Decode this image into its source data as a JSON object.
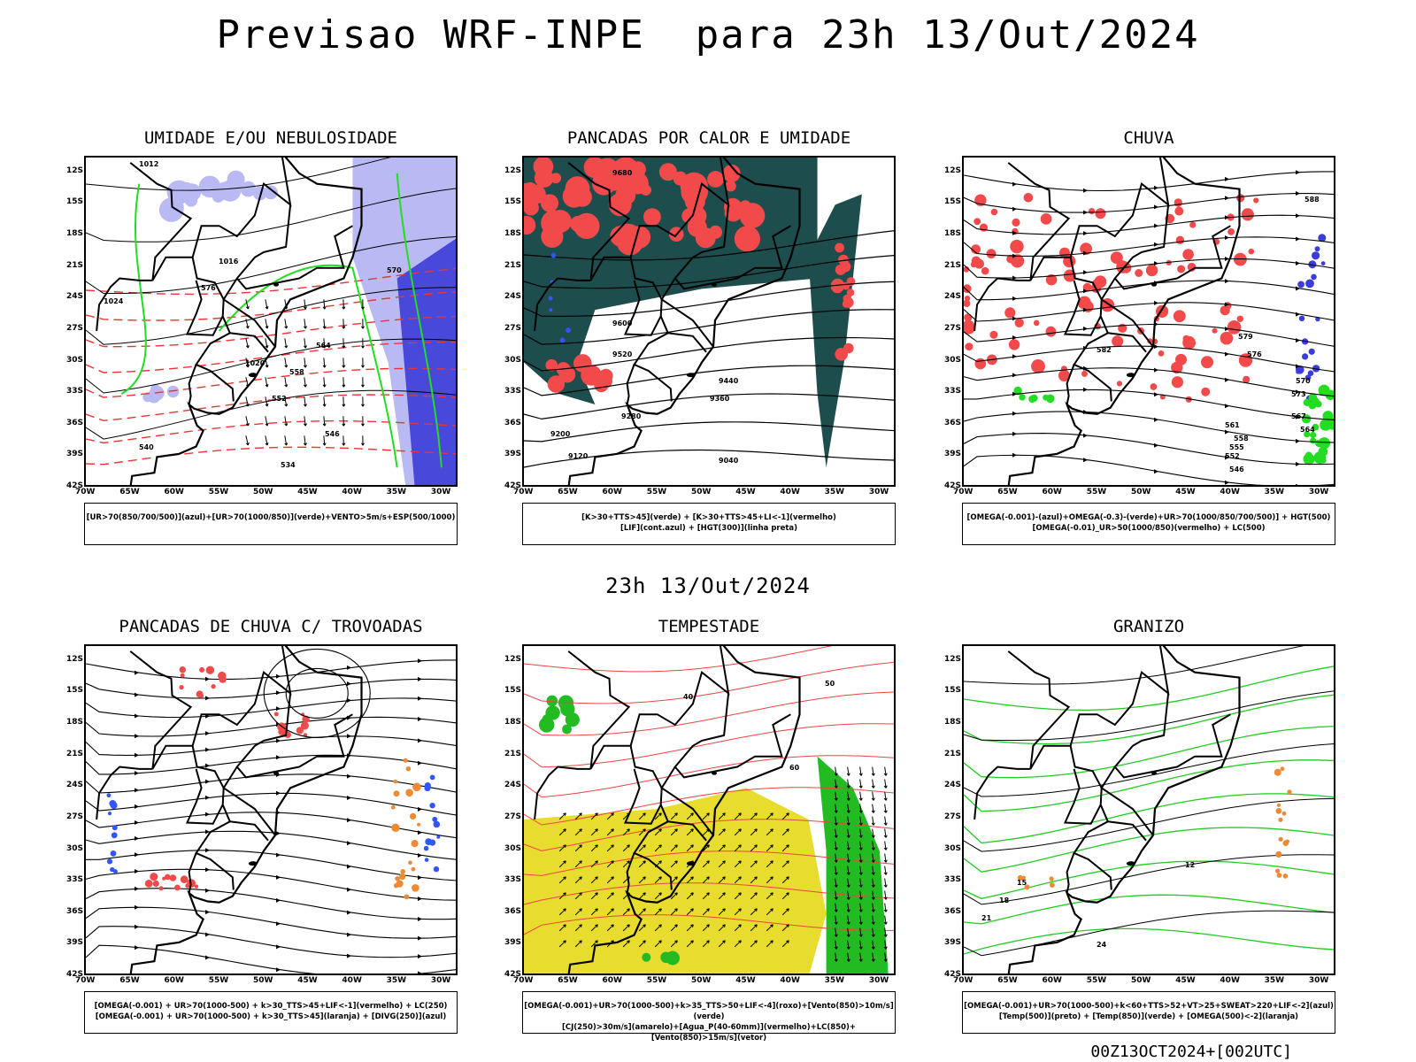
{
  "title": "Previsao WRF-INPE  para 23h 13/Out/2024",
  "subtitle": "23h 13/Out/2024",
  "footer": "00Z13OCT2024+[002UTC]",
  "axes": {
    "lat_labels": [
      "12S",
      "15S",
      "18S",
      "21S",
      "24S",
      "27S",
      "30S",
      "33S",
      "36S",
      "39S",
      "42S"
    ],
    "lon_labels": [
      "70W",
      "65W",
      "60W",
      "55W",
      "50W",
      "45W",
      "40W",
      "35W",
      "30W"
    ]
  },
  "colors": {
    "blue_shade": "#b9b9f3",
    "blue_strong": "#3c3cd8",
    "green": "#22dd22",
    "red": "#f24a4a",
    "dark_teal": "#1d4d4d",
    "yellow": "#e8dc2e",
    "orange": "#ee8a33"
  },
  "panels": [
    {
      "id": "umidade",
      "title": "UMIDADE E/OU NEBULOSIDADE",
      "legend": [
        "[UR>70(850/700/500)](azul)+[UR>70(1000/850)](verde)+VENTO>5m/s+ESP(500/1000)"
      ],
      "contour_labels": [
        "1012",
        "1016",
        "1020",
        "1024",
        "576",
        "570",
        "564",
        "558",
        "552",
        "546",
        "540",
        "534"
      ]
    },
    {
      "id": "pancadas_calor",
      "title": "PANCADAS POR CALOR E UMIDADE",
      "legend": [
        "[K>30+TTS>45](verde) + [K>30+TTS>45+LI<-1](vermelho)",
        "[LIF](cont.azul) + [HGT(300)](linha preta)"
      ],
      "contour_labels": [
        "9680",
        "9600",
        "9520",
        "9440",
        "9360",
        "9280",
        "9200",
        "9120",
        "9040"
      ]
    },
    {
      "id": "chuva",
      "title": "CHUVA",
      "legend": [
        "[OMEGA(-0.001)-(azul)+OMEGA(-0.3)-(verde)+UR>70(1000/850/700/500)] + HGT(500)",
        "[OMEGA(-0.01)_UR>50(1000/850)(vermelho) + LC(500)"
      ],
      "contour_labels": [
        "588",
        "582",
        "579",
        "576",
        "573",
        "570",
        "567",
        "564",
        "561",
        "558",
        "555",
        "552",
        "546"
      ]
    },
    {
      "id": "trovoadas",
      "title": "PANCADAS DE CHUVA C/ TROVOADAS",
      "legend": [
        "[OMEGA(-0.001) + UR>70(1000-500) + k>30_TTS>45+LIF<-1](vermelho) + LC(250)",
        "[OMEGA(-0.001) + UR>70(1000-500) + k>30_TTS>45](laranja) + [DIVG(250)](azul)"
      ],
      "contour_labels": []
    },
    {
      "id": "tempestade",
      "title": "TEMPESTADE",
      "legend": [
        "[OMEGA(-0.001)+UR>70(1000-500)+k>35_TTS>50+LIF<-4](roxo)+[Vento(850)>10m/s](verde)",
        "[CJ(250)>30m/s](amarelo)+[Agua_P(40-60mm)](vermelho)+LC(850)+[Vento(850)>15m/s](vetor)"
      ],
      "contour_labels": [
        "40",
        "50",
        "60"
      ]
    },
    {
      "id": "granizo",
      "title": "GRANIZO",
      "legend": [
        "[OMEGA(-0.001)+UR>70(1000-500)+k<60+TTS>52+VT>25+SWEAT>220+LIF<-2](azul)",
        "[Temp(500)](preto) + [Temp(850)](verde) + [OMEGA(500)<-2](laranja)"
      ],
      "contour_labels": [
        "21",
        "18",
        "15",
        "12",
        "24"
      ]
    }
  ]
}
